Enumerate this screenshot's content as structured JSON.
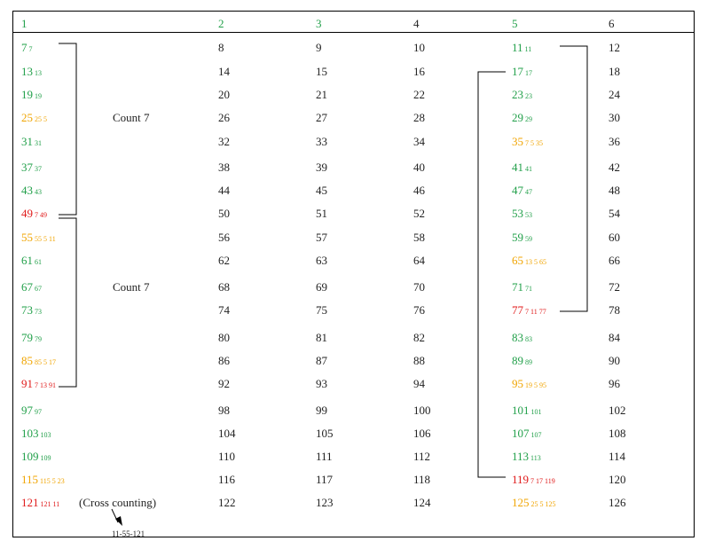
{
  "headers": [
    "1",
    "2",
    "3",
    "4",
    "5",
    "6"
  ],
  "col1": [
    {
      "main": "7",
      "sub": "7",
      "color": "green"
    },
    {
      "main": "13",
      "sub": "13",
      "color": "green"
    },
    {
      "main": "19",
      "sub": "19",
      "color": "green"
    },
    {
      "main": "25",
      "sub": "25 5",
      "color": "orange"
    },
    {
      "main": "31",
      "sub": "31",
      "color": "green"
    },
    {
      "main": "37",
      "sub": "37",
      "color": "green"
    },
    {
      "main": "43",
      "sub": "43",
      "color": "green"
    },
    {
      "main": "49",
      "sub": "7 49",
      "color": "red"
    },
    {
      "main": "55",
      "sub": "55 5 11",
      "color": "orange"
    },
    {
      "main": "61",
      "sub": "61",
      "color": "green"
    },
    {
      "main": "67",
      "sub": "67",
      "color": "green"
    },
    {
      "main": "73",
      "sub": "73",
      "color": "green"
    },
    {
      "main": "79",
      "sub": "79",
      "color": "green"
    },
    {
      "main": "85",
      "sub": "85 5 17",
      "color": "orange"
    },
    {
      "main": "91",
      "sub": "7 13 91",
      "color": "red"
    },
    {
      "main": "97",
      "sub": "97",
      "color": "green"
    },
    {
      "main": "103",
      "sub": "103",
      "color": "green"
    },
    {
      "main": "109",
      "sub": "109",
      "color": "green"
    },
    {
      "main": "115",
      "sub": "115 5 23",
      "color": "orange"
    },
    {
      "main": "121",
      "sub": "121 11",
      "color": "red"
    }
  ],
  "col2": [
    "8",
    "14",
    "20",
    "26",
    "32",
    "38",
    "44",
    "50",
    "56",
    "62",
    "68",
    "74",
    "80",
    "86",
    "92",
    "98",
    "104",
    "110",
    "116",
    "122"
  ],
  "col3": [
    "9",
    "15",
    "21",
    "27",
    "33",
    "39",
    "45",
    "51",
    "57",
    "63",
    "69",
    "75",
    "81",
    "87",
    "93",
    "99",
    "105",
    "111",
    "117",
    "123"
  ],
  "col4": [
    "10",
    "16",
    "22",
    "28",
    "34",
    "40",
    "46",
    "52",
    "58",
    "64",
    "70",
    "76",
    "82",
    "88",
    "94",
    "100",
    "106",
    "112",
    "118",
    "124"
  ],
  "col5": [
    {
      "main": "11",
      "sub": "11",
      "color": "green"
    },
    {
      "main": "17",
      "sub": "17",
      "color": "green"
    },
    {
      "main": "23",
      "sub": "23",
      "color": "green"
    },
    {
      "main": "29",
      "sub": "29",
      "color": "green"
    },
    {
      "main": "35",
      "sub": "7 5 35",
      "color": "orange"
    },
    {
      "main": "41",
      "sub": "41",
      "color": "green"
    },
    {
      "main": "47",
      "sub": "47",
      "color": "green"
    },
    {
      "main": "53",
      "sub": "53",
      "color": "green"
    },
    {
      "main": "59",
      "sub": "59",
      "color": "green"
    },
    {
      "main": "65",
      "sub": "13 5 65",
      "color": "orange"
    },
    {
      "main": "71",
      "sub": "71",
      "color": "green"
    },
    {
      "main": "77",
      "sub": "7 11 77",
      "color": "red"
    },
    {
      "main": "83",
      "sub": "83",
      "color": "green"
    },
    {
      "main": "89",
      "sub": "89",
      "color": "green"
    },
    {
      "main": "95",
      "sub": "19 5 95",
      "color": "orange"
    },
    {
      "main": "101",
      "sub": "101",
      "color": "green"
    },
    {
      "main": "107",
      "sub": "107",
      "color": "green"
    },
    {
      "main": "113",
      "sub": "113",
      "color": "green"
    },
    {
      "main": "119",
      "sub": "7 17 119",
      "color": "red"
    },
    {
      "main": "125",
      "sub": "25 5 125",
      "color": "orange"
    }
  ],
  "col6": [
    "12",
    "18",
    "24",
    "30",
    "36",
    "42",
    "48",
    "54",
    "60",
    "66",
    "72",
    "78",
    "84",
    "90",
    "96",
    "102",
    "108",
    "114",
    "120",
    "126"
  ],
  "labels": {
    "count_a": "Count 7",
    "count_b": "Count 7",
    "cross": "(Cross counting)",
    "footnote": "11-55-121"
  },
  "colors": {
    "green": "#22a04a",
    "orange": "#f0a400",
    "red": "#e01a1a",
    "text": "#222222"
  }
}
